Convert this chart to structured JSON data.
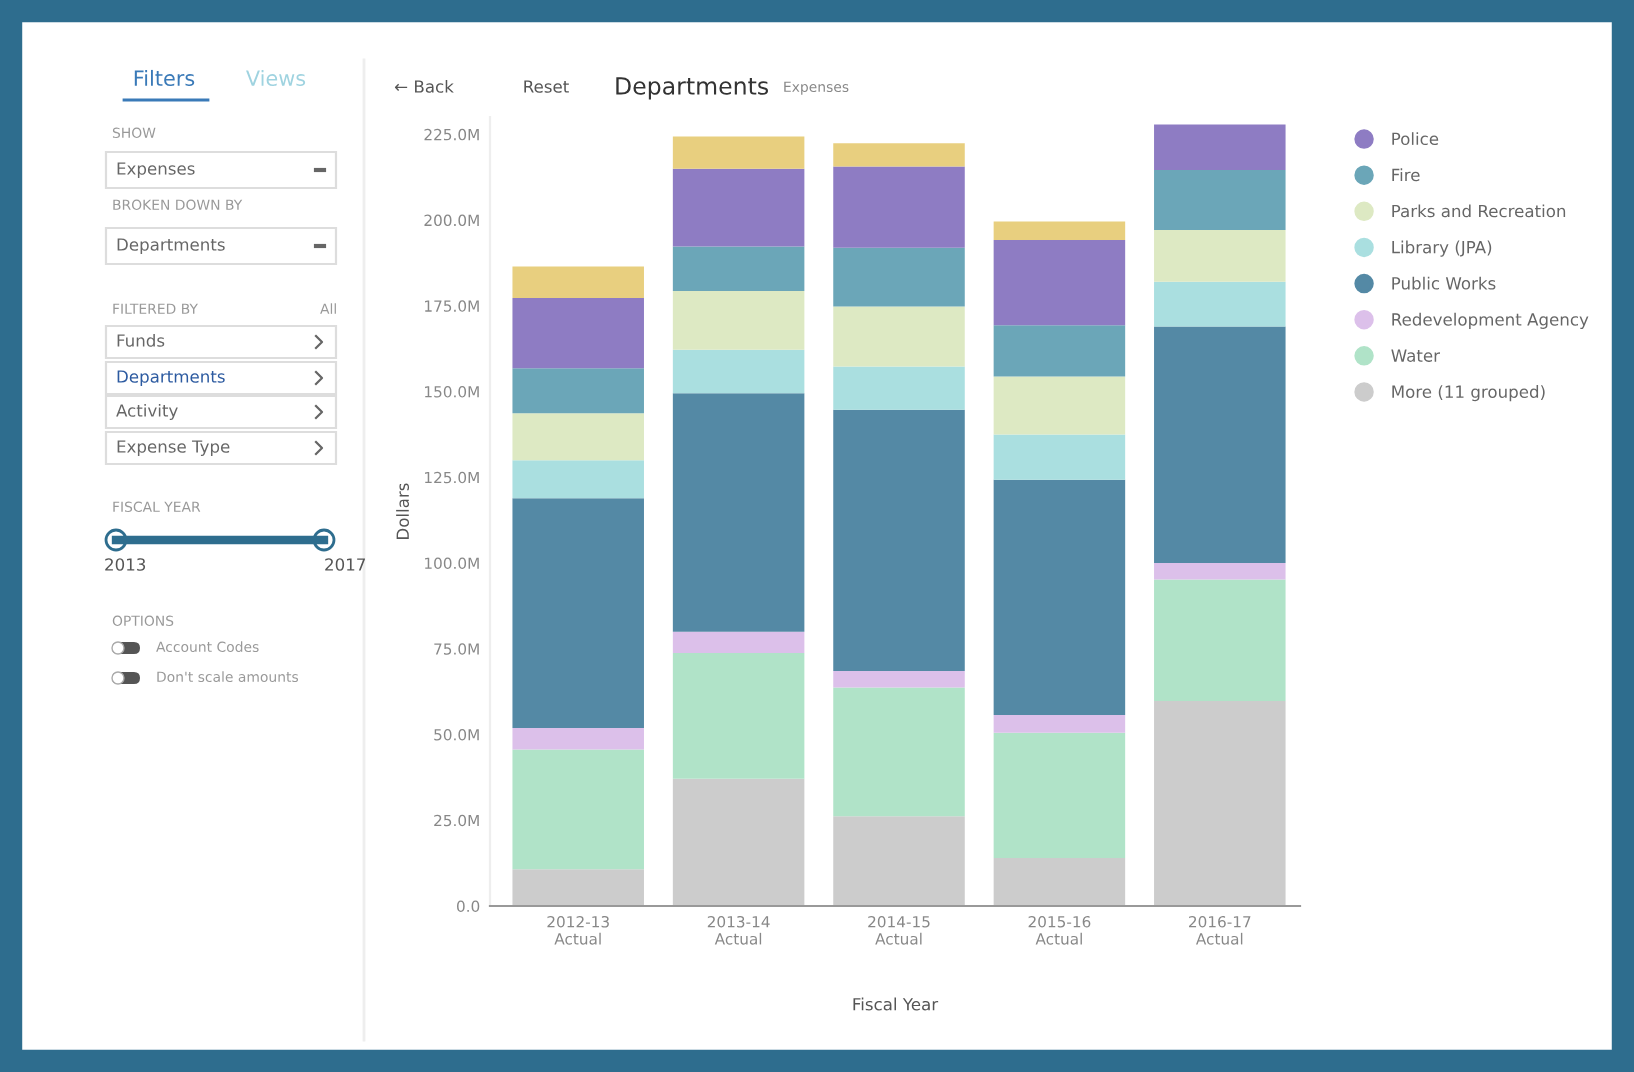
{
  "chart_data": [
    {
      "type": "other",
      "annotations": [
        "Filters",
        "Views",
        "SHOW",
        "Expenses",
        "BROKEN DOWN BY",
        "Departments",
        "FILTERED BY",
        "All",
        "Funds",
        "Departments",
        "Activity",
        "Expense Type",
        "FISCAL YEAR",
        "2013",
        "2017",
        "OPTIONS",
        "Account Codes",
        "Don't scale amounts"
      ]
    },
    {
      "type": "bar",
      "stacked": true,
      "title": "Departments",
      "xlabel": "Fiscal Year",
      "ylabel": "Dollars",
      "annotations": [
        "← Back",
        "Reset",
        "Expenses"
      ],
      "categories": [
        "2012-13\nActual",
        "2013-14\nActual",
        "2014-15\nActual",
        "2015-16\nActual",
        "2016-17\nActual"
      ],
      "ylim": [
        0,
        230
      ],
      "yticks": [
        {
          "value": 0,
          "label": "0.0"
        },
        {
          "value": 25,
          "label": "25.0M"
        },
        {
          "value": 50,
          "label": "50.0M"
        },
        {
          "value": 75,
          "label": "75.0M"
        },
        {
          "value": 100,
          "label": "100.0M"
        },
        {
          "value": 125,
          "label": "125.0M"
        },
        {
          "value": 150,
          "label": "150.0M"
        },
        {
          "value": 175,
          "label": "175.0M"
        },
        {
          "value": 200,
          "label": "200.0M"
        },
        {
          "value": 225,
          "label": "225.0M"
        }
      ],
      "legend": "right",
      "grid": false,
      "series": [
        {
          "name": "More (11 grouped)",
          "color": "#cccccc",
          "values": [
            10.7,
            37.1,
            26.2,
            14,
            59.8
          ]
        },
        {
          "name": "Water",
          "color": "#b0e3c8",
          "values": [
            34.9,
            36.7,
            37.5,
            36.5,
            35.4
          ]
        },
        {
          "name": "Redevelopment Agency",
          "color": "#dcc0ea",
          "values": [
            6.3,
            6.2,
            4.8,
            5.2,
            4.8
          ]
        },
        {
          "name": "Public Works",
          "color": "#5489a5",
          "values": [
            67,
            69.5,
            76.2,
            68.6,
            69
          ]
        },
        {
          "name": "Library (JPA)",
          "color": "#aadfe0",
          "values": [
            11.1,
            12.7,
            12.6,
            13.2,
            13
          ]
        },
        {
          "name": "Parks and Recreation",
          "color": "#dde9c3",
          "values": [
            13.7,
            17.1,
            17.5,
            16.9,
            15.1
          ]
        },
        {
          "name": "Fire",
          "color": "#6ba6b8",
          "values": [
            13.1,
            13,
            17.1,
            14.9,
            17.5
          ]
        },
        {
          "name": "Police",
          "color": "#8e7cc3",
          "values": [
            20.5,
            22.7,
            23.7,
            24.9,
            13.3
          ]
        },
        {
          "color": "#e8cf7f",
          "values": [
            9.2,
            9.4,
            6.8,
            5.4,
            null
          ]
        }
      ]
    }
  ]
}
